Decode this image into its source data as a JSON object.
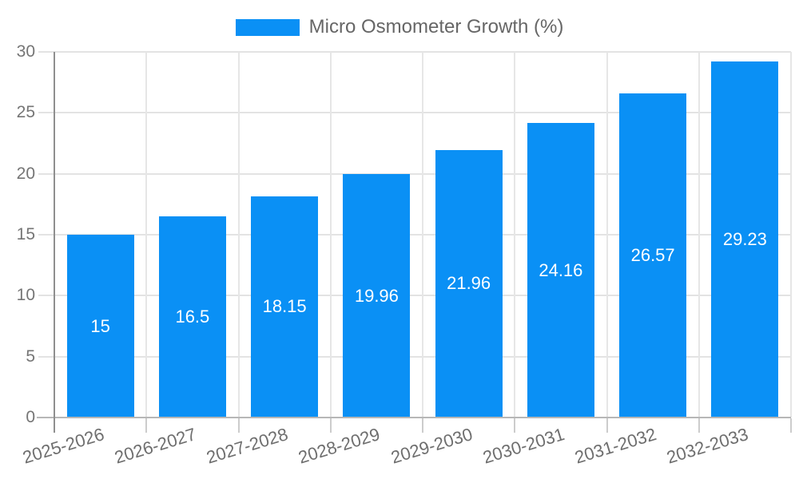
{
  "legend": {
    "label": "Micro Osmometer Growth (%)",
    "swatch_color": "#0a90f5"
  },
  "chart_data": {
    "type": "bar",
    "title": "",
    "categories": [
      "2025-2026",
      "2026-2027",
      "2027-2028",
      "2028-2029",
      "2029-2030",
      "2030-2031",
      "2031-2032",
      "2032-2033"
    ],
    "series": [
      {
        "name": "Micro Osmometer Growth (%)",
        "values": [
          15,
          16.5,
          18.15,
          19.96,
          21.96,
          24.16,
          26.57,
          29.23
        ]
      }
    ],
    "value_labels": [
      "15",
      "16.5",
      "18.15",
      "19.96",
      "21.96",
      "24.16",
      "26.57",
      "29.23"
    ],
    "xlabel": "",
    "ylabel": "",
    "ylim": [
      0,
      30
    ],
    "yticks": [
      0,
      5,
      10,
      15,
      20,
      25,
      30
    ],
    "grid": true,
    "legend_position": "top",
    "bar_color": "#0a90f5",
    "value_label_color": "#ffffff",
    "axis_text_color": "#757575",
    "gridline_color": "#e3e3e3",
    "axis_line_color": "#8f8f8f"
  }
}
